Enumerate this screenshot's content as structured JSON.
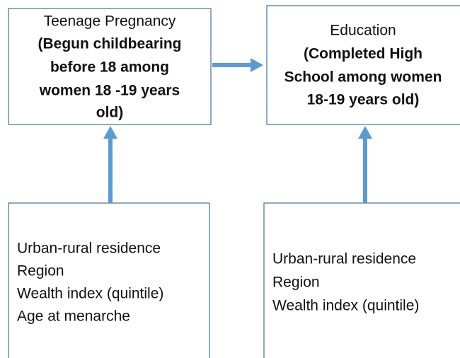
{
  "nodes": [
    {
      "title": "Teenage Pregnancy",
      "detail": [
        "(Begun childbearing",
        "before 18 among",
        "women 18 -19 years",
        "old)"
      ]
    },
    {
      "title": "Education",
      "detail": [
        "(Completed High",
        "School among women",
        "18-19 years old)"
      ]
    },
    {
      "lines": [
        "Urban-rural residence",
        "Region",
        "Wealth index (quintile)",
        "Age at menarche"
      ]
    },
    {
      "lines": [
        "Urban-rural residence",
        "Region",
        "Wealth index (quintile)"
      ]
    }
  ]
}
